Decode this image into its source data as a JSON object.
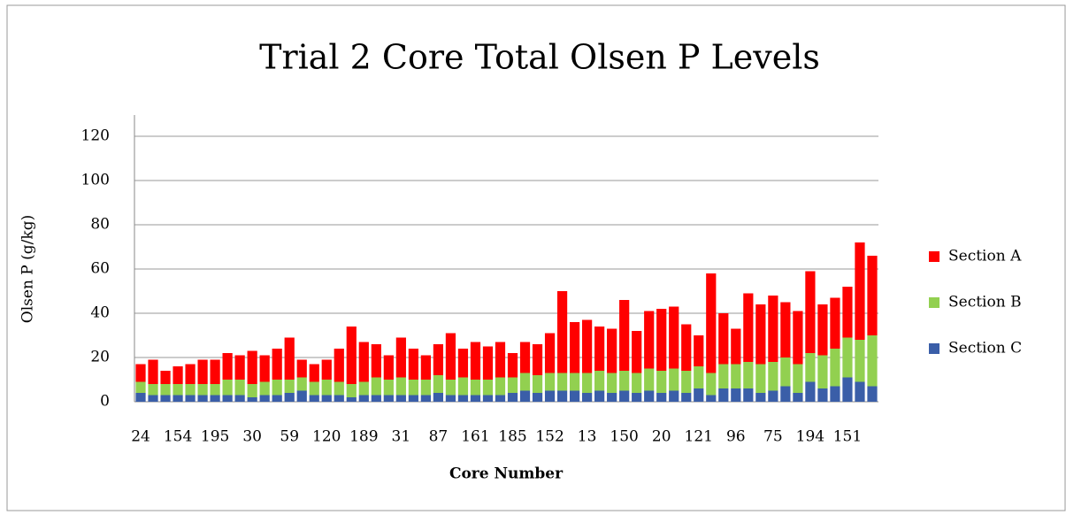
{
  "chart_data": {
    "type": "stacked_bar",
    "title": "Trial 2 Core Total Olsen P Levels",
    "x_label": "Core Number",
    "y_label": "Olsen P (g/kg)",
    "categories": [
      "24",
      null,
      null,
      "154",
      null,
      null,
      "195",
      null,
      null,
      "30",
      null,
      null,
      "59",
      null,
      null,
      "120",
      null,
      null,
      "189",
      null,
      null,
      "31",
      null,
      null,
      "87",
      null,
      null,
      "161",
      null,
      null,
      "185",
      null,
      null,
      "152",
      null,
      null,
      "13",
      null,
      null,
      "150",
      null,
      null,
      "20",
      null,
      null,
      "121",
      null,
      null,
      "96",
      null,
      null,
      "75",
      null,
      null,
      "194",
      null,
      null,
      "151",
      null,
      null
    ],
    "series": [
      {
        "name": "Section A",
        "color": "#ff0000",
        "values": [
          8,
          11,
          6,
          8,
          9,
          11,
          11,
          12,
          11,
          15,
          12,
          14,
          19,
          8,
          8,
          9,
          15,
          26,
          18,
          15,
          11,
          18,
          14,
          11,
          14,
          21,
          13,
          17,
          15,
          16,
          11,
          14,
          14,
          18,
          37,
          23,
          24,
          20,
          20,
          32,
          19,
          26,
          28,
          28,
          21,
          14,
          45,
          23,
          16,
          31,
          27,
          30,
          25,
          24,
          37,
          23,
          23,
          23,
          44,
          36
        ]
      },
      {
        "name": "Section B",
        "color": "#92d050",
        "values": [
          5,
          5,
          5,
          5,
          5,
          5,
          5,
          7,
          7,
          6,
          6,
          7,
          6,
          6,
          6,
          7,
          6,
          6,
          6,
          8,
          7,
          8,
          7,
          7,
          8,
          7,
          8,
          7,
          7,
          8,
          7,
          8,
          8,
          8,
          8,
          8,
          9,
          9,
          9,
          9,
          9,
          10,
          10,
          10,
          10,
          10,
          10,
          11,
          11,
          12,
          13,
          13,
          13,
          13,
          13,
          15,
          17,
          18,
          19,
          23
        ]
      },
      {
        "name": "Section C",
        "color": "#3a5ea8",
        "values": [
          4,
          3,
          3,
          3,
          3,
          3,
          3,
          3,
          3,
          2,
          3,
          3,
          4,
          5,
          3,
          3,
          3,
          2,
          3,
          3,
          3,
          3,
          3,
          3,
          4,
          3,
          3,
          3,
          3,
          3,
          4,
          5,
          4,
          5,
          5,
          5,
          4,
          5,
          4,
          5,
          4,
          5,
          4,
          5,
          4,
          6,
          3,
          6,
          6,
          6,
          4,
          5,
          7,
          4,
          9,
          6,
          7,
          11,
          9,
          7
        ]
      }
    ],
    "ylim": [
      0,
      120
    ],
    "yticks": [
      0,
      20,
      40,
      60,
      80,
      100,
      120
    ],
    "grid": true,
    "legend": "right"
  }
}
